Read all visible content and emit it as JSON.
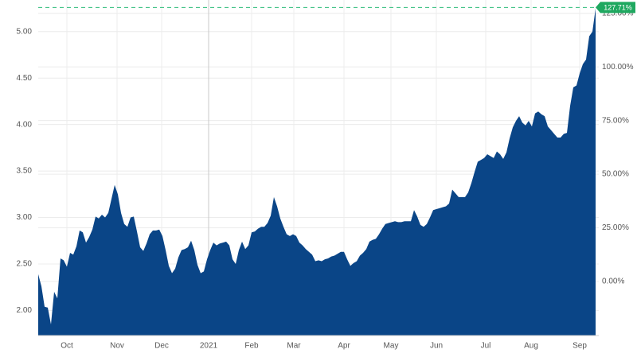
{
  "chart_data": {
    "type": "area",
    "values": [
      2.39,
      2.26,
      2.04,
      2.03,
      1.85,
      2.2,
      2.13,
      2.56,
      2.54,
      2.47,
      2.62,
      2.6,
      2.69,
      2.86,
      2.84,
      2.73,
      2.79,
      2.87,
      3.01,
      2.99,
      3.03,
      3.0,
      3.05,
      3.2,
      3.35,
      3.25,
      3.05,
      2.93,
      2.9,
      3.0,
      3.01,
      2.85,
      2.68,
      2.64,
      2.72,
      2.82,
      2.86,
      2.86,
      2.87,
      2.8,
      2.65,
      2.48,
      2.4,
      2.45,
      2.57,
      2.65,
      2.66,
      2.68,
      2.75,
      2.65,
      2.49,
      2.4,
      2.42,
      2.55,
      2.65,
      2.73,
      2.7,
      2.72,
      2.73,
      2.74,
      2.7,
      2.55,
      2.5,
      2.65,
      2.74,
      2.66,
      2.7,
      2.84,
      2.85,
      2.88,
      2.9,
      2.9,
      2.94,
      3.02,
      3.22,
      3.12,
      2.99,
      2.9,
      2.82,
      2.8,
      2.82,
      2.8,
      2.73,
      2.7,
      2.66,
      2.63,
      2.6,
      2.53,
      2.54,
      2.53,
      2.55,
      2.56,
      2.58,
      2.59,
      2.61,
      2.63,
      2.63,
      2.55,
      2.48,
      2.51,
      2.53,
      2.59,
      2.62,
      2.66,
      2.74,
      2.76,
      2.77,
      2.82,
      2.88,
      2.93,
      2.94,
      2.95,
      2.96,
      2.95,
      2.95,
      2.96,
      2.96,
      2.96,
      3.08,
      3.01,
      2.92,
      2.9,
      2.93,
      3.0,
      3.08,
      3.09,
      3.1,
      3.11,
      3.12,
      3.15,
      3.3,
      3.26,
      3.22,
      3.22,
      3.22,
      3.27,
      3.37,
      3.49,
      3.6,
      3.62,
      3.64,
      3.68,
      3.66,
      3.64,
      3.71,
      3.68,
      3.63,
      3.7,
      3.85,
      3.97,
      4.04,
      4.09,
      4.02,
      3.99,
      4.04,
      3.98,
      4.12,
      4.14,
      4.11,
      4.09,
      3.98,
      3.94,
      3.9,
      3.86,
      3.86,
      3.9,
      3.91,
      4.2,
      4.4,
      4.42,
      4.55,
      4.65,
      4.7,
      4.95,
      5.0,
      5.25
    ],
    "color": "#0a4587",
    "xlim": [
      0,
      175
    ],
    "xticks": [
      {
        "value": 9,
        "label": "Oct"
      },
      {
        "value": 24.75,
        "label": "Nov"
      },
      {
        "value": 38.75,
        "label": "Dec"
      },
      {
        "value": 53.5,
        "label": "2021"
      },
      {
        "value": 67,
        "label": "Feb"
      },
      {
        "value": 80.25,
        "label": "Mar"
      },
      {
        "value": 96,
        "label": "Apr"
      },
      {
        "value": 110.75,
        "label": "May"
      },
      {
        "value": 125,
        "label": "Jun"
      },
      {
        "value": 140.5,
        "label": "Jul"
      },
      {
        "value": 154.75,
        "label": "Aug"
      },
      {
        "value": 170,
        "label": "Sep"
      }
    ],
    "ylim": [
      1.73,
      5.34
    ],
    "yticks": [
      {
        "value": 2,
        "label": "2.00"
      },
      {
        "value": 2.5,
        "label": "2.50"
      },
      {
        "value": 3,
        "label": "3.00"
      },
      {
        "value": 3.5,
        "label": "3.50"
      },
      {
        "value": 4,
        "label": "4.00"
      },
      {
        "value": 4.5,
        "label": "4.50"
      },
      {
        "value": 5,
        "label": "5.00"
      }
    ],
    "y2lim": [
      -25.2,
      131.2
    ],
    "y2ticks": [
      {
        "value": 0,
        "label": "0.00%"
      },
      {
        "value": 25,
        "label": "25.00%"
      },
      {
        "value": 50,
        "label": "50.00%"
      },
      {
        "value": 75,
        "label": "75.00%"
      },
      {
        "value": 100,
        "label": "100.00%"
      },
      {
        "value": 125,
        "label": "125.00%"
      }
    ],
    "last_value": {
      "value": 127.71,
      "label": "127.71%"
    },
    "grid": true
  }
}
